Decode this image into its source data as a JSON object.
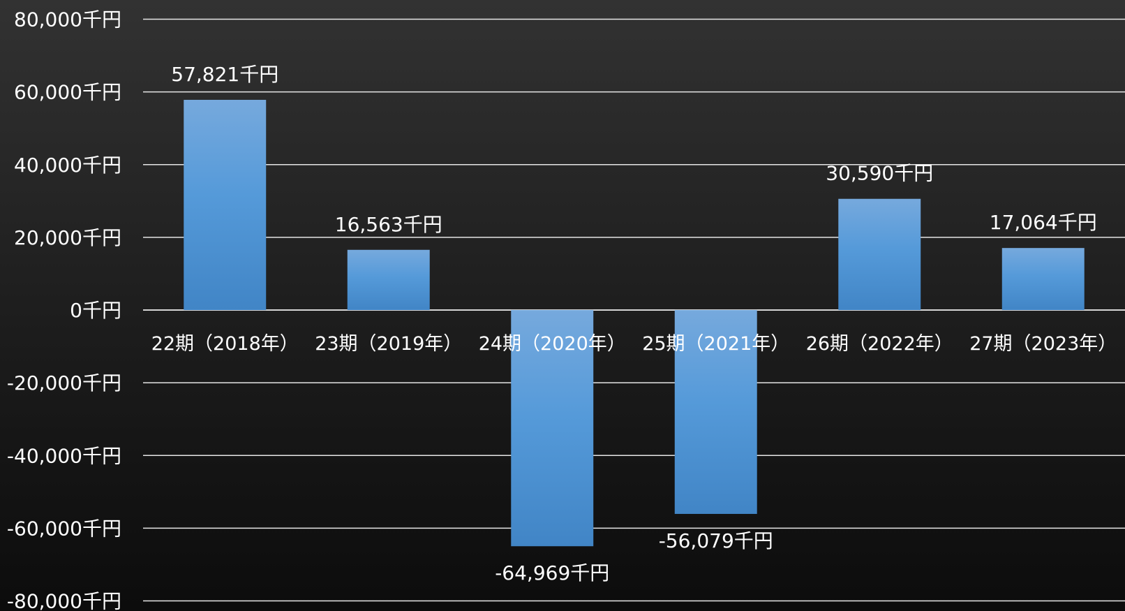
{
  "colors": {
    "bar_top": "#76a9dd",
    "bar_mid": "#559ad9",
    "bar_bottom": "#4185c6"
  },
  "chart_data": {
    "type": "bar",
    "title": "",
    "xlabel": "",
    "ylabel": "",
    "ylim": [
      -80000,
      80000
    ],
    "yticks": [
      80000,
      60000,
      40000,
      20000,
      0,
      -20000,
      -40000,
      -60000,
      -80000
    ],
    "ytick_labels": [
      "80,000千円",
      "60,000千円",
      "40,000千円",
      "20,000千円",
      "0千円",
      "-20,000千円",
      "-40,000千円",
      "-60,000千円",
      "-80,000千円"
    ],
    "categories": [
      "22期（2018年）",
      "23期（2019年）",
      "24期（2020年）",
      "25期（2021年）",
      "26期（2022年）",
      "27期（2023年）"
    ],
    "values": [
      57821,
      16563,
      -64969,
      -56079,
      30590,
      17064
    ],
    "data_labels": [
      "57,821千円",
      "16,563千円",
      "-64,969千円",
      "-56,079千円",
      "30,590千円",
      "17,064千円"
    ],
    "grid": true,
    "legend": "none"
  }
}
